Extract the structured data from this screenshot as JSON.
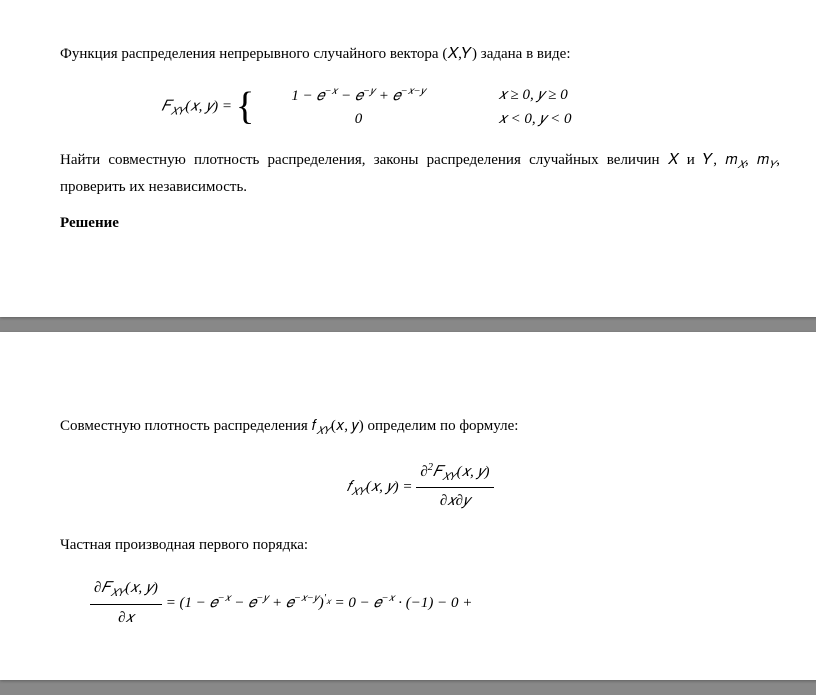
{
  "page1": {
    "intro": "Функция распределения непрерывного случайного вектора (𝑋,𝑌) задана в виде:",
    "formula_lhs": "𝐹",
    "formula_lhs_sub": "𝑋𝑌",
    "formula_lhs_args": "(𝑥, 𝑦) =",
    "case1_expr": "1 − 𝑒",
    "case1_exp1": "−𝑥",
    "case1_mid1": " − 𝑒",
    "case1_exp2": "−𝑦",
    "case1_mid2": " + 𝑒",
    "case1_exp3": "−𝑥−𝑦",
    "case1_cond": "𝑥 ≥ 0,   𝑦 ≥ 0",
    "case2_expr": "0",
    "case2_cond": "𝑥 < 0,    𝑦 < 0",
    "task": "Найти совместную плотность распределения, законы распределения случайных величин 𝑋 и 𝑌, 𝑚",
    "task_sub1": "𝑋",
    "task_mid": ", 𝑚",
    "task_sub2": "𝑌",
    "task_end": ", проверить их независимость.",
    "solution_header": "Решение"
  },
  "page2": {
    "line1_a": "Совместную плотность распределения  𝑓",
    "line1_sub": "𝑋𝑌",
    "line1_b": "(𝑥, 𝑦) определим по формуле:",
    "formula2_lhs": "𝑓",
    "formula2_lhs_sub": "𝑋𝑌",
    "formula2_lhs_args": "(𝑥, 𝑦) =",
    "frac_num_a": "∂",
    "frac_num_sup": "2",
    "frac_num_b": "𝐹",
    "frac_num_sub": "𝑋𝑌",
    "frac_num_c": "(𝑥, 𝑦)",
    "frac_den": "∂𝑥∂𝑦",
    "line2": "Частная производная первого порядка:",
    "formula3_frac_num_a": "∂𝐹",
    "formula3_frac_num_sub": "𝑋𝑌",
    "formula3_frac_num_b": "(𝑥, 𝑦)",
    "formula3_frac_den": "∂𝑥",
    "formula3_rhs_a": " = (1 − 𝑒",
    "formula3_exp1": "−𝑥",
    "formula3_mid1": " − 𝑒",
    "formula3_exp2": "−𝑦",
    "formula3_mid2": " + 𝑒",
    "formula3_exp3": "−𝑥−𝑦",
    "formula3_rhs_b": ")",
    "formula3_prime": "′",
    "formula3_prime_sub": "𝑥",
    "formula3_rhs_c": " = 0 − 𝑒",
    "formula3_exp4": "−𝑥",
    "formula3_rhs_d": " · (−1) − 0 +"
  },
  "style": {
    "page_bg": "#ffffff",
    "outer_bg": "#888888",
    "text_color": "#000000",
    "font": "Times New Roman",
    "body_fontsize": 15
  }
}
